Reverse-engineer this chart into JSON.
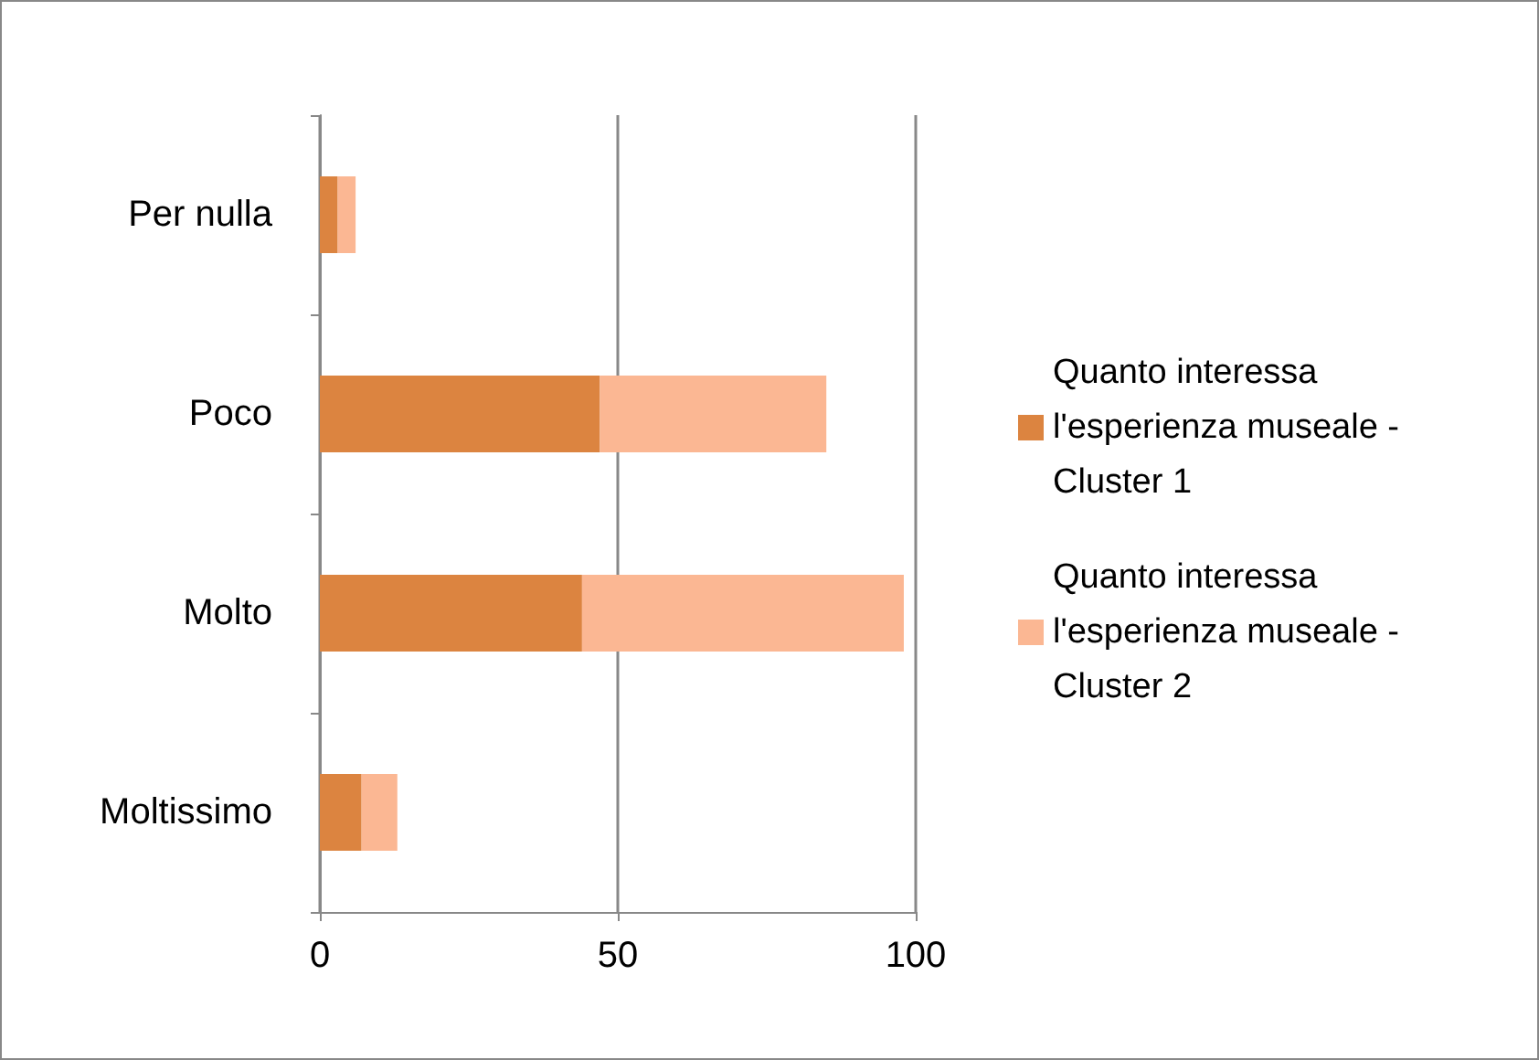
{
  "chart_data": {
    "type": "bar",
    "orientation": "horizontal",
    "stacked": true,
    "categories": [
      "Per nulla",
      "Poco",
      "Molto",
      "Moltissimo"
    ],
    "series": [
      {
        "name": "Quanto interessa l'esperienza museale - Cluster 1",
        "color": "#dc8440",
        "values": [
          3,
          47,
          44,
          7
        ]
      },
      {
        "name": "Quanto interessa l'esperienza museale - Cluster 2",
        "color": "#fbb793",
        "values": [
          3,
          38,
          54,
          6
        ]
      }
    ],
    "xlim": [
      0,
      100
    ],
    "xticks": [
      0,
      50,
      100
    ],
    "grid": "x",
    "legend": "right"
  }
}
